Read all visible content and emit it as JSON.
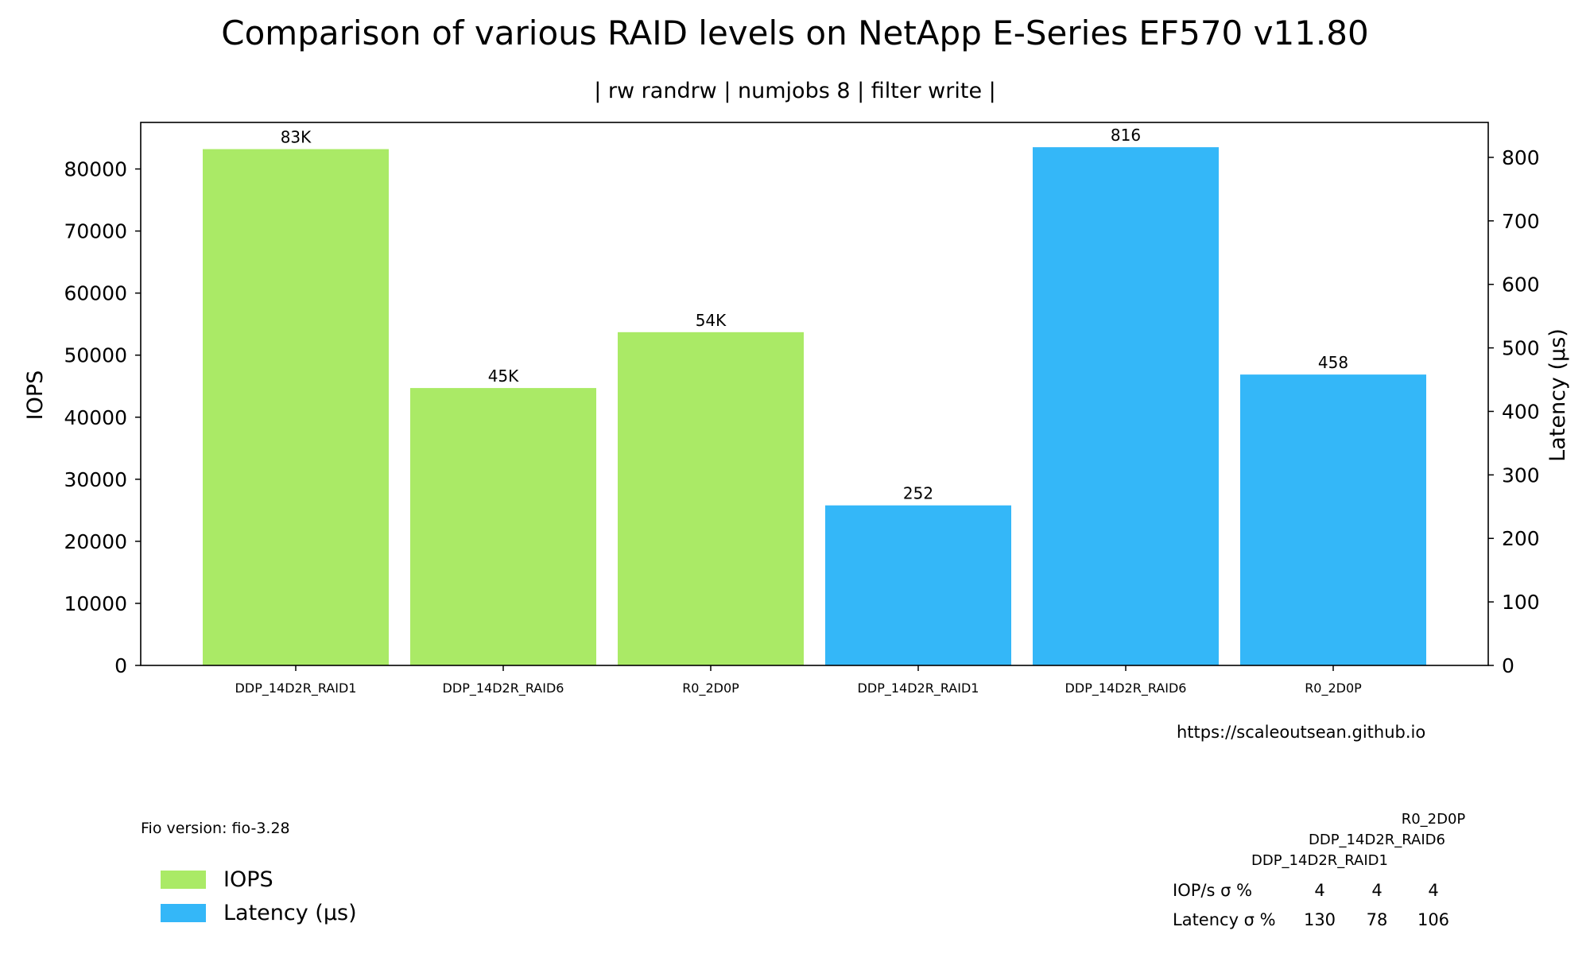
{
  "chart_data": {
    "type": "bar",
    "title": "Comparison of various RAID levels on NetApp E-Series EF570 v11.80",
    "subtitle": "| rw randrw | numjobs 8 | filter write |",
    "categories": [
      "DDP_14D2R_RAID1",
      "DDP_14D2R_RAID6",
      "R0_2D0P"
    ],
    "series": [
      {
        "name": "IOPS",
        "axis": "left",
        "color": "#aaea66",
        "values": [
          83200,
          44700,
          53700
        ],
        "labels": [
          "83K",
          "45K",
          "54K"
        ]
      },
      {
        "name": "Latency (µs)",
        "axis": "right",
        "color": "#34b7f8",
        "values": [
          252,
          816,
          458
        ],
        "labels": [
          "252",
          "816",
          "458"
        ]
      }
    ],
    "ylabel": "IOPS",
    "ylabel_right": "Latency (µs)",
    "ylim": [
      0,
      87500
    ],
    "ylim_right": [
      0,
      855
    ],
    "yticks": [
      "0",
      "10000",
      "20000",
      "30000",
      "40000",
      "50000",
      "60000",
      "70000",
      "80000"
    ],
    "yticks_right": [
      "0",
      "100",
      "200",
      "300",
      "400",
      "500",
      "600",
      "700",
      "800"
    ],
    "grid": false,
    "legend_position": "bottom-left"
  },
  "footer": {
    "url": "https://scaleoutsean.github.io",
    "fio_version": "Fio version: fio-3.28"
  },
  "stats_table": {
    "columns": [
      "DDP_14D2R_RAID1",
      "DDP_14D2R_RAID6",
      "R0_2D0P"
    ],
    "rows": [
      {
        "label": "IOP/s σ %",
        "values": [
          "4",
          "4",
          "4"
        ]
      },
      {
        "label": "Latency σ %",
        "values": [
          "130",
          "78",
          "106"
        ]
      }
    ]
  }
}
